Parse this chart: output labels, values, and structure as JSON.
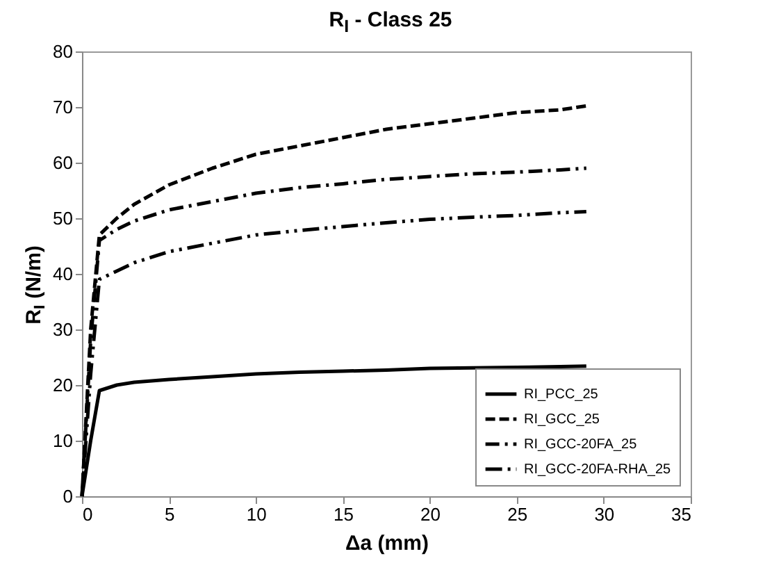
{
  "chart_data": {
    "type": "line",
    "title": "R$_{I}$ - Class 25",
    "xlabel": "Δa (mm)",
    "ylabel": "R$_{I}$ (N/m)",
    "x": [
      0,
      0.5,
      1,
      2,
      3,
      5,
      7.5,
      10,
      12.5,
      15,
      17.5,
      20,
      22.5,
      25,
      27.5,
      29
    ],
    "series": [
      {
        "name": "RI_PCC_25",
        "color": "#000000",
        "line_style": "solid",
        "values": [
          0,
          10,
          19,
          20,
          20.5,
          21,
          21.5,
          22,
          22.3,
          22.5,
          22.7,
          23,
          23.1,
          23.2,
          23.3,
          23.4
        ]
      },
      {
        "name": "RI_GCC_25",
        "color": "#000000",
        "line_style": "dashed",
        "values": [
          0,
          30,
          47,
          50,
          52.5,
          56,
          59,
          61.5,
          63,
          64.5,
          66,
          67,
          68,
          69,
          69.5,
          70.2
        ]
      },
      {
        "name": "RI_GCC-20FA_25",
        "color": "#000000",
        "line_style": "dashdot",
        "values": [
          0,
          28,
          46,
          48,
          49.5,
          51.5,
          53,
          54.5,
          55.5,
          56.2,
          57,
          57.5,
          58,
          58.3,
          58.7,
          59
        ]
      },
      {
        "name": "RI_GCC-20FA-RHA_25",
        "color": "#000000",
        "line_style": "dashdotdot",
        "values": [
          0,
          22,
          39,
          40.5,
          42,
          44,
          45.5,
          47,
          47.8,
          48.5,
          49.2,
          49.8,
          50.2,
          50.5,
          51,
          51.2
        ]
      }
    ],
    "xlim": [
      0,
      35
    ],
    "xticks": [
      0,
      5,
      10,
      15,
      20,
      25,
      30,
      35
    ],
    "ylim": [
      0,
      80
    ],
    "yticks": [
      0,
      10,
      20,
      30,
      40,
      50,
      60,
      70,
      80
    ],
    "grid": false,
    "legend": "bottom right"
  }
}
